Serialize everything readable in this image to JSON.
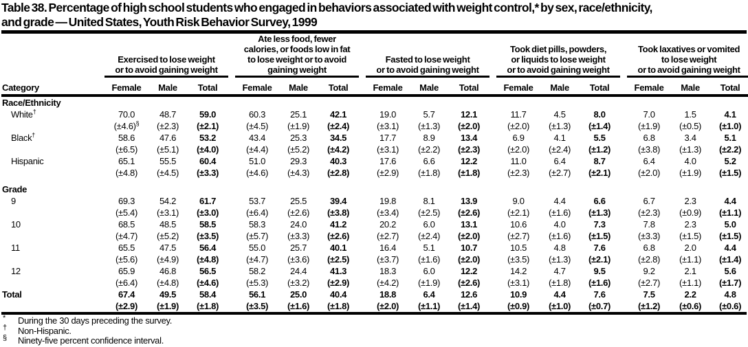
{
  "title": {
    "line1": "Table 38. Percentage of high school students who engaged in behaviors associated with weight control,* by sex, race/ethnicity,",
    "line2": "and grade — United States, Youth Risk Behavior Survey, 1999"
  },
  "table": {
    "category_header": "Category",
    "sub_headers": [
      "Female",
      "Male",
      "Total"
    ],
    "groups": [
      {
        "label_lines": [
          "Exercised to lose weight",
          "or to avoid gaining weight"
        ]
      },
      {
        "label_lines": [
          "Ate less food, fewer",
          "calories, or foods low in fat",
          "to lose weight or to avoid",
          "gaining weight"
        ]
      },
      {
        "label_lines": [
          "Fasted to lose weight",
          "or to avoid gaining weight"
        ]
      },
      {
        "label_lines": [
          "Took diet pills, powders,",
          "or liquids to lose weight",
          "or to avoid gaining weight"
        ]
      },
      {
        "label_lines": [
          "Took laxatives or vomited",
          "to lose weight",
          "or to avoid gaining weight"
        ]
      }
    ],
    "sections": [
      {
        "header": "Race/Ethnicity",
        "rows": [
          {
            "label": "White",
            "label_sup": "†",
            "values": [
              "70.0",
              "48.7",
              "59.0",
              "60.3",
              "25.1",
              "42.1",
              "19.0",
              "5.7",
              "12.1",
              "11.7",
              "4.5",
              "8.0",
              "7.0",
              "1.5",
              "4.1"
            ],
            "ci": [
              "(±4.6)§",
              "(±2.3)",
              "(±2.1)",
              "(±4.5)",
              "(±1.9)",
              "(±2.4)",
              "(±3.1)",
              "(±1.3)",
              "(±2.0)",
              "(±2.0)",
              "(±1.3)",
              "(±1.4)",
              "(±1.9)",
              "(±0.5)",
              "(±1.0)"
            ]
          },
          {
            "label": "Black",
            "label_sup": "†",
            "values": [
              "58.6",
              "47.6",
              "53.2",
              "43.4",
              "25.3",
              "34.5",
              "17.7",
              "8.9",
              "13.4",
              "6.9",
              "4.1",
              "5.5",
              "6.8",
              "3.4",
              "5.1"
            ],
            "ci": [
              "(±6.5)",
              "(±5.1)",
              "(±4.0)",
              "(±4.4)",
              "(±5.2)",
              "(±4.2)",
              "(±3.1)",
              "(±2.2)",
              "(±2.3)",
              "(±2.0)",
              "(±2.4)",
              "(±1.2)",
              "(±3.8)",
              "(±1.3)",
              "(±2.2)"
            ]
          },
          {
            "label": "Hispanic",
            "label_sup": "",
            "values": [
              "65.1",
              "55.5",
              "60.4",
              "51.0",
              "29.3",
              "40.3",
              "17.6",
              "6.6",
              "12.2",
              "11.0",
              "6.4",
              "8.7",
              "6.4",
              "4.0",
              "5.2"
            ],
            "ci": [
              "(±4.8)",
              "(±4.5)",
              "(±3.3)",
              "(±4.6)",
              "(±4.3)",
              "(±2.8)",
              "(±2.9)",
              "(±1.8)",
              "(±1.8)",
              "(±2.3)",
              "(±2.7)",
              "(±2.1)",
              "(±2.0)",
              "(±1.9)",
              "(±1.5)"
            ]
          }
        ]
      },
      {
        "header": "Grade",
        "rows": [
          {
            "label": "9",
            "label_sup": "",
            "values": [
              "69.3",
              "54.2",
              "61.7",
              "53.7",
              "25.5",
              "39.4",
              "19.8",
              "8.1",
              "13.9",
              "9.0",
              "4.4",
              "6.6",
              "6.7",
              "2.3",
              "4.4"
            ],
            "ci": [
              "(±5.4)",
              "(±3.1)",
              "(±3.0)",
              "(±6.4)",
              "(±2.6)",
              "(±3.8)",
              "(±3.4)",
              "(±2.5)",
              "(±2.6)",
              "(±2.1)",
              "(±1.6)",
              "(±1.3)",
              "(±2.3)",
              "(±0.9)",
              "(±1.1)"
            ]
          },
          {
            "label": "10",
            "label_sup": "",
            "values": [
              "68.5",
              "48.5",
              "58.5",
              "58.3",
              "24.0",
              "41.2",
              "20.2",
              "6.0",
              "13.1",
              "10.6",
              "4.0",
              "7.3",
              "7.8",
              "2.3",
              "5.0"
            ],
            "ci": [
              "(±4.7)",
              "(±5.2)",
              "(±3.5)",
              "(±5.7)",
              "(±3.3)",
              "(±2.6)",
              "(±2.7)",
              "(±2.4)",
              "(±2.0)",
              "(±2.7)",
              "(±1.6)",
              "(±1.5)",
              "(±3.3)",
              "(±1.5)",
              "(±1.5)"
            ]
          },
          {
            "label": "11",
            "label_sup": "",
            "values": [
              "65.5",
              "47.5",
              "56.4",
              "55.0",
              "25.7",
              "40.1",
              "16.4",
              "5.1",
              "10.7",
              "10.5",
              "4.8",
              "7.6",
              "6.8",
              "2.0",
              "4.4"
            ],
            "ci": [
              "(±5.6)",
              "(±4.9)",
              "(±4.8)",
              "(±4.7)",
              "(±3.6)",
              "(±2.5)",
              "(±3.7)",
              "(±1.6)",
              "(±2.0)",
              "(±3.5)",
              "(±1.3)",
              "(±2.1)",
              "(±2.8)",
              "(±1.1)",
              "(±1.4)"
            ]
          },
          {
            "label": "12",
            "label_sup": "",
            "values": [
              "65.9",
              "46.8",
              "56.5",
              "58.2",
              "24.4",
              "41.3",
              "18.3",
              "6.0",
              "12.2",
              "14.2",
              "4.7",
              "9.5",
              "9.2",
              "2.1",
              "5.6"
            ],
            "ci": [
              "(±6.4)",
              "(±4.8)",
              "(±4.6)",
              "(±5.3)",
              "(±3.2)",
              "(±2.9)",
              "(±4.2)",
              "(±1.9)",
              "(±2.6)",
              "(±3.1)",
              "(±1.8)",
              "(±1.6)",
              "(±2.7)",
              "(±1.1)",
              "(±1.7)"
            ]
          }
        ]
      }
    ],
    "total_row": {
      "label": "Total",
      "values": [
        "67.4",
        "49.5",
        "58.4",
        "56.1",
        "25.0",
        "40.4",
        "18.8",
        "6.4",
        "12.6",
        "10.9",
        "4.4",
        "7.6",
        "7.5",
        "2.2",
        "4.8"
      ],
      "ci": [
        "(±2.9)",
        "(±1.9)",
        "(±1.8)",
        "(±3.5)",
        "(±1.6)",
        "(±1.8)",
        "(±2.0)",
        "(±1.1)",
        "(±1.4)",
        "(±0.9)",
        "(±1.0)",
        "(±0.7)",
        "(±1.2)",
        "(±0.6)",
        "(±0.6)"
      ]
    }
  },
  "footnotes": [
    {
      "marker": "*",
      "text": "During the 30 days preceding the survey."
    },
    {
      "marker": "†",
      "text": "Non-Hispanic."
    },
    {
      "marker": "§",
      "text": "Ninety-five percent confidence interval."
    }
  ]
}
